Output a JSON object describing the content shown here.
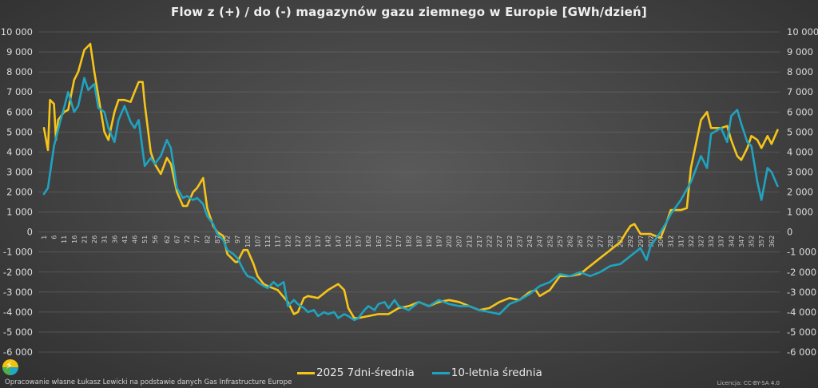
{
  "chart_data": {
    "type": "line",
    "title": "Flow z (+) / do (-) magazynów gazu ziemnego w Europie [GWh/dzień]",
    "xlabel": "",
    "ylabel": "GWh/dzień",
    "ylim": [
      -6000,
      10000
    ],
    "y_ticks": [
      "10 000",
      "9 000",
      "8 000",
      "7 000",
      "6 000",
      "5 000",
      "4 000",
      "3 000",
      "2 000",
      "1 000",
      "0",
      "-1 000",
      "-2 000",
      "-3 000",
      "-4 000",
      "-5 000",
      "-6 000"
    ],
    "x_tick_labels": [
      "1",
      "6",
      "11",
      "16",
      "21",
      "26",
      "31",
      "36",
      "41",
      "46",
      "51",
      "56",
      "62",
      "67",
      "72",
      "77",
      "82",
      "87",
      "92",
      "97",
      "102",
      "107",
      "112",
      "117",
      "122",
      "127",
      "132",
      "137",
      "142",
      "147",
      "152",
      "157",
      "162",
      "167",
      "172",
      "177",
      "182",
      "187",
      "192",
      "197",
      "202",
      "207",
      "212",
      "217",
      "222",
      "227",
      "232",
      "237",
      "242",
      "247",
      "252",
      "257",
      "262",
      "267",
      "272",
      "277",
      "282",
      "287",
      "292",
      "297",
      "302",
      "307",
      "312",
      "317",
      "322",
      "327",
      "332",
      "337",
      "342",
      "347",
      "352",
      "357",
      "362"
    ],
    "grid": true,
    "legend_position": "bottom",
    "series": [
      {
        "name": "2025 7dni-średnia",
        "color": "#f5c518",
        "x": [
          1,
          3,
          4,
          6,
          7,
          8,
          11,
          13,
          16,
          18,
          21,
          23,
          24,
          26,
          28,
          31,
          33,
          36,
          38,
          41,
          44,
          46,
          48,
          50,
          51,
          54,
          56,
          59,
          62,
          64,
          67,
          70,
          72,
          75,
          77,
          80,
          82,
          85,
          87,
          90,
          92,
          96,
          97,
          100,
          102,
          105,
          107,
          110,
          112,
          117,
          122,
          125,
          127,
          130,
          132,
          137,
          142,
          147,
          150,
          152,
          155,
          157,
          162,
          167,
          172,
          177,
          182,
          187,
          192,
          197,
          202,
          207,
          212,
          217,
          222,
          227,
          232,
          237,
          242,
          245,
          247,
          252,
          257,
          262,
          267,
          272,
          277,
          282,
          287,
          290,
          292,
          294,
          297,
          302,
          307,
          310,
          312,
          317,
          320,
          322,
          327,
          330,
          332,
          337,
          340,
          342,
          345,
          347,
          350,
          352,
          355,
          357,
          360,
          362,
          365
        ],
        "values": [
          5200,
          4100,
          6600,
          6400,
          4600,
          5600,
          6000,
          6100,
          7600,
          8000,
          9100,
          9300,
          9400,
          8000,
          6800,
          5000,
          4600,
          6000,
          6600,
          6600,
          6500,
          7000,
          7500,
          7500,
          6400,
          4000,
          3400,
          2900,
          3700,
          3400,
          2000,
          1300,
          1300,
          2000,
          2200,
          2700,
          1200,
          300,
          0,
          -200,
          -1100,
          -1500,
          -1500,
          -900,
          -900,
          -1600,
          -2200,
          -2600,
          -2700,
          -2900,
          -3500,
          -4100,
          -4000,
          -3300,
          -3200,
          -3300,
          -2900,
          -2600,
          -2900,
          -3800,
          -4300,
          -4300,
          -4200,
          -4100,
          -4100,
          -3800,
          -3700,
          -3500,
          -3700,
          -3500,
          -3400,
          -3500,
          -3700,
          -3900,
          -3800,
          -3500,
          -3300,
          -3400,
          -3000,
          -2900,
          -3200,
          -2900,
          -2200,
          -2200,
          -2100,
          -1700,
          -1300,
          -900,
          -500,
          0,
          300,
          400,
          -100,
          -100,
          -300,
          500,
          1100,
          1100,
          1200,
          3200,
          5600,
          6000,
          5200,
          5200,
          5300,
          4600,
          3800,
          3600,
          4200,
          4800,
          4600,
          4200,
          4800,
          4400,
          5100
        ]
      },
      {
        "name": "10-letnia średnia",
        "color": "#1fa3c0",
        "x": [
          1,
          3,
          6,
          9,
          11,
          13,
          16,
          18,
          21,
          23,
          26,
          28,
          31,
          33,
          36,
          38,
          41,
          44,
          46,
          48,
          51,
          54,
          56,
          59,
          62,
          64,
          67,
          70,
          72,
          75,
          77,
          80,
          82,
          85,
          87,
          90,
          92,
          95,
          97,
          100,
          102,
          105,
          107,
          110,
          112,
          115,
          117,
          120,
          122,
          125,
          127,
          130,
          132,
          135,
          137,
          140,
          142,
          145,
          147,
          150,
          152,
          155,
          157,
          160,
          162,
          165,
          167,
          170,
          172,
          175,
          177,
          182,
          187,
          192,
          197,
          202,
          207,
          212,
          217,
          222,
          227,
          232,
          237,
          242,
          247,
          252,
          257,
          262,
          267,
          272,
          277,
          282,
          287,
          292,
          297,
          300,
          302,
          307,
          310,
          312,
          317,
          322,
          327,
          330,
          332,
          337,
          340,
          342,
          345,
          347,
          350,
          352,
          355,
          357,
          360,
          362,
          365
        ],
        "values": [
          1900,
          2200,
          4300,
          5500,
          6200,
          7000,
          6000,
          6300,
          7700,
          7100,
          7400,
          6200,
          6000,
          5200,
          4500,
          5600,
          6300,
          5500,
          5200,
          5600,
          3300,
          3700,
          3400,
          3800,
          4600,
          4200,
          2200,
          1700,
          1800,
          1600,
          1700,
          1400,
          800,
          400,
          -100,
          -400,
          -900,
          -1100,
          -1300,
          -1900,
          -2200,
          -2300,
          -2500,
          -2700,
          -2800,
          -2500,
          -2700,
          -2500,
          -3700,
          -3400,
          -3600,
          -3800,
          -4000,
          -3900,
          -4200,
          -4000,
          -4100,
          -4000,
          -4300,
          -4100,
          -4200,
          -4400,
          -4300,
          -3900,
          -3700,
          -3900,
          -3600,
          -3500,
          -3800,
          -3400,
          -3700,
          -3900,
          -3500,
          -3700,
          -3400,
          -3600,
          -3700,
          -3700,
          -3900,
          -4000,
          -4100,
          -3600,
          -3400,
          -3100,
          -2700,
          -2500,
          -2100,
          -2200,
          -2000,
          -2200,
          -2000,
          -1700,
          -1600,
          -1200,
          -800,
          -1400,
          -700,
          0,
          500,
          900,
          1600,
          2500,
          3800,
          3200,
          4900,
          5200,
          4500,
          5800,
          6100,
          5400,
          4500,
          4300,
          2500,
          1600,
          3200,
          3000,
          2300
        ]
      }
    ]
  },
  "legend": {
    "items": [
      {
        "label": "2025 7dni-średnia",
        "color": "#f5c518"
      },
      {
        "label": "10-letnia średnia",
        "color": "#1fa3c0"
      }
    ]
  },
  "footer": {
    "credit": "Opracowanie własne Łukasz Lewicki na podstawie danych Gas Infrastructure Europe",
    "license": "Licencja: CC-BY-SA 4.0"
  }
}
